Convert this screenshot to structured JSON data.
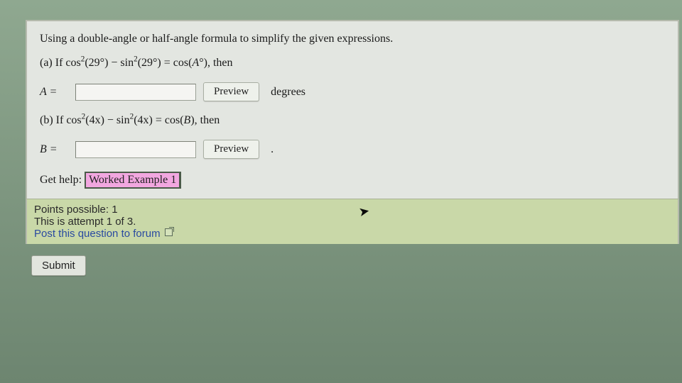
{
  "instruction": "Using a double-angle or half-angle formula to simplify the given expressions.",
  "partA": {
    "prefix": "(a) If cos",
    "arg": "(29°)",
    "minus": " − sin",
    "arg2": "(29°)",
    "eq": " = cos(",
    "varUnit": "°), then",
    "varName": "A",
    "inputLabel": "A =",
    "previewLabel": "Preview",
    "unit": "degrees"
  },
  "partB": {
    "prefix": "(b) If cos",
    "arg": "(4x)",
    "minus": " − sin",
    "arg2": "(4x)",
    "eq": " = cos(",
    "varName": "B",
    "suffix": "), then",
    "inputLabel": "B =",
    "previewLabel": "Preview",
    "trailing": "."
  },
  "help": {
    "label": "Get help:",
    "workedExample": "Worked Example 1"
  },
  "info": {
    "points": "Points possible: 1",
    "attempt": "This is attempt 1 of 3.",
    "forumLink": "Post this question to forum"
  },
  "submitLabel": "Submit"
}
